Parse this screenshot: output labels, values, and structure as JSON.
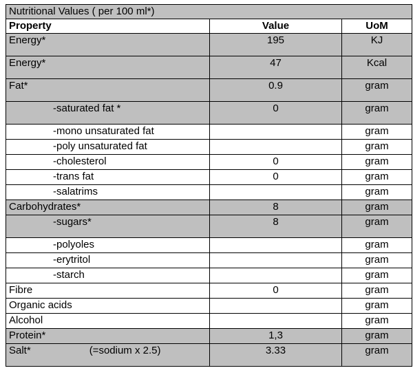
{
  "title": "Nutritional Values ( per 100 ml*)",
  "headers": {
    "property": "Property",
    "value": "Value",
    "uom": "UoM"
  },
  "rows": [
    {
      "property": "Energy*",
      "value": "195",
      "uom": "KJ"
    },
    {
      "property": "Energy*",
      "value": "47",
      "uom": "Kcal"
    },
    {
      "property": "Fat*",
      "value": "0.9",
      "uom": "gram"
    },
    {
      "property": "-saturated fat *",
      "value": "0",
      "uom": "gram"
    },
    {
      "property": "-mono unsaturated fat",
      "value": "",
      "uom": "gram"
    },
    {
      "property": "-poly unsaturated fat",
      "value": "",
      "uom": "gram"
    },
    {
      "property": "-cholesterol",
      "value": "0",
      "uom": "gram"
    },
    {
      "property": "-trans fat",
      "value": "0",
      "uom": "gram"
    },
    {
      "property": "-salatrims",
      "value": "",
      "uom": "gram"
    },
    {
      "property": "Carbohydrates*",
      "value": "8",
      "uom": "gram"
    },
    {
      "property": "-sugars*",
      "value": "8",
      "uom": "gram"
    },
    {
      "property": "-polyoles",
      "value": "",
      "uom": "gram"
    },
    {
      "property": "-erytritol",
      "value": "",
      "uom": "gram"
    },
    {
      "property": "-starch",
      "value": "",
      "uom": "gram"
    },
    {
      "property": "Fibre",
      "value": "0",
      "uom": "gram"
    },
    {
      "property": "Organic acids",
      "value": "",
      "uom": "gram"
    },
    {
      "property": "Alcohol",
      "value": "",
      "uom": "gram"
    },
    {
      "property": "Protein*",
      "value": "1,3",
      "uom": "gram"
    },
    {
      "property": "Salt*",
      "note": "(=sodium x 2.5)",
      "value": "3.33",
      "uom": "gram"
    }
  ]
}
